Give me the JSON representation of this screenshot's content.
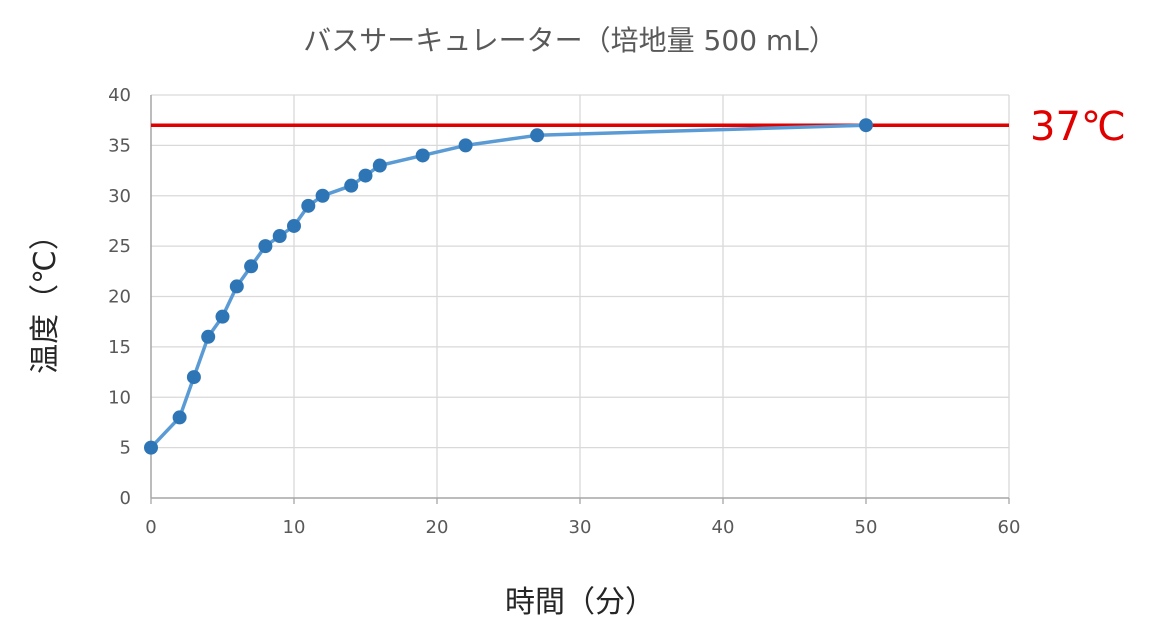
{
  "chart_data": {
    "type": "line",
    "title": "バスサーキュレーター（培地量 500 mL）",
    "xlabel": "時間（分）",
    "ylabel": "温度（℃）",
    "xlim": [
      0,
      60
    ],
    "ylim": [
      0,
      40
    ],
    "x_ticks": [
      0,
      10,
      20,
      30,
      40,
      50,
      60
    ],
    "y_ticks": [
      0,
      5,
      10,
      15,
      20,
      25,
      30,
      35,
      40
    ],
    "grid": true,
    "legend": "none",
    "series": [
      {
        "x": [
          0,
          2,
          3,
          4,
          5,
          6,
          7,
          8,
          9,
          10,
          11,
          12,
          14,
          15,
          16,
          19,
          22,
          27,
          50
        ],
        "y": [
          5,
          8,
          12,
          16,
          18,
          21,
          23,
          25,
          26,
          27,
          29,
          30,
          31,
          32,
          33,
          34,
          35,
          36,
          37
        ],
        "color": "#5B9BD5",
        "marker_color": "#2E75B6"
      }
    ],
    "reference_line": {
      "y": 37,
      "label": "37℃",
      "color": "#E00000"
    }
  }
}
